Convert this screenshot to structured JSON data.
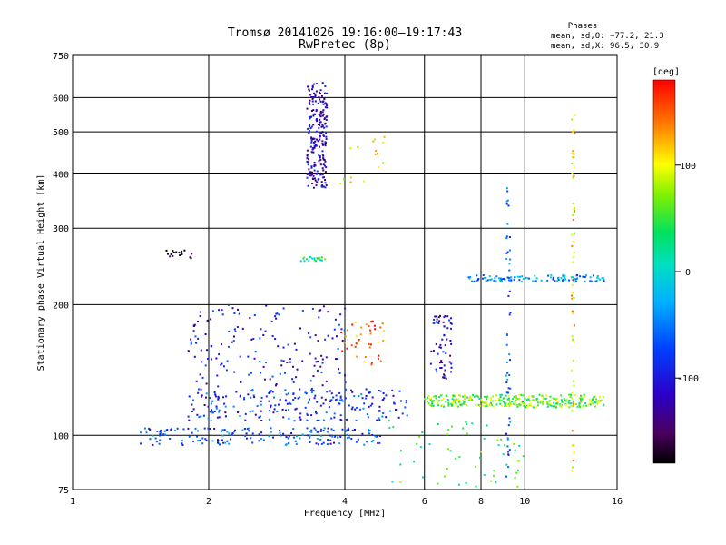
{
  "chart_data": {
    "type": "scatter",
    "title": "Tromsø 20141026 19:16:00–19:17:43",
    "subtitle": "RwPretec (8p)",
    "xlabel": "Frequency [MHz]",
    "ylabel": "Stationary phase Virtual Height [km]",
    "xscale": "log2",
    "yscale": "log",
    "xlim": [
      1,
      16
    ],
    "ylim": [
      75,
      750
    ],
    "x_ticks": [
      1,
      2,
      4,
      6,
      8,
      10,
      16
    ],
    "x_tick_labels": [
      "1",
      "2",
      "4",
      "6",
      "8",
      "10",
      "16"
    ],
    "y_ticks": [
      75,
      100,
      200,
      300,
      400,
      500,
      600,
      750
    ],
    "y_tick_labels": [
      "75",
      "100",
      "200",
      "300",
      "400",
      "500",
      "600",
      "750"
    ],
    "grid": true,
    "colorbar": {
      "label": "[deg]",
      "range": [
        -180,
        180
      ],
      "ticks": [
        100,
        0,
        -100
      ],
      "tick_labels": [
        "100",
        "0",
        "-100"
      ],
      "colormap": "rainbow"
    },
    "stats": {
      "header": "Phases",
      "line_o": "mean, sd,O: −77.2, 21.3",
      "line_x": "mean, sd,X:  96.5, 30.9"
    },
    "clusters": [
      {
        "name": "F-layer trace",
        "x": [
          3.3,
          3.65
        ],
        "y": [
          370,
          650
        ],
        "phase": -120,
        "n": 220
      },
      {
        "name": "isolated high echoes",
        "x": [
          3.9,
          5.0
        ],
        "y": [
          380,
          510
        ],
        "phase": 90,
        "n": 16
      },
      {
        "name": "sporadic 260 km",
        "x": [
          1.6,
          1.85
        ],
        "y": [
          255,
          268
        ],
        "phase": -160,
        "n": 16
      },
      {
        "name": "ridge 255 km",
        "x": [
          3.2,
          3.7
        ],
        "y": [
          252,
          258
        ],
        "phase": 30,
        "n": 20
      },
      {
        "name": "E-region rising trace",
        "x": [
          1.8,
          4.1
        ],
        "y": [
          120,
          200
        ],
        "phase": -100,
        "n": 180
      },
      {
        "name": "mid trace 110-125 km",
        "x": [
          1.8,
          5.5
        ],
        "y": [
          108,
          128
        ],
        "phase": -80,
        "n": 220
      },
      {
        "name": "trace near 98 km",
        "x": [
          1.4,
          4.8
        ],
        "y": [
          95,
          104
        ],
        "phase": -70,
        "n": 180
      },
      {
        "name": "mixed cluster 150-185 km",
        "x": [
          3.9,
          4.9
        ],
        "y": [
          145,
          185
        ],
        "phase": 150,
        "n": 40
      },
      {
        "name": "trace 6.5 MHz",
        "x": [
          6.2,
          6.9
        ],
        "y": [
          135,
          190
        ],
        "phase": -110,
        "n": 60
      },
      {
        "name": "band near 120 km",
        "x": [
          6.0,
          15.0
        ],
        "y": [
          116,
          124
        ],
        "phase": 60,
        "n": 320
      },
      {
        "name": "band near 230 km",
        "x": [
          7.5,
          15.0
        ],
        "y": [
          226,
          234
        ],
        "phase": -40,
        "n": 110
      },
      {
        "name": "vertical line 12.8 MHz",
        "x": [
          12.7,
          12.9
        ],
        "y": [
          80,
          560
        ],
        "phase": 110,
        "n": 60
      },
      {
        "name": "vertical line 9.2 MHz",
        "x": [
          9.1,
          9.3
        ],
        "y": [
          80,
          380
        ],
        "phase": -60,
        "n": 50
      },
      {
        "name": "scattered low points",
        "x": [
          5.0,
          10.0
        ],
        "y": [
          76,
          110
        ],
        "phase": 40,
        "n": 60
      }
    ]
  }
}
